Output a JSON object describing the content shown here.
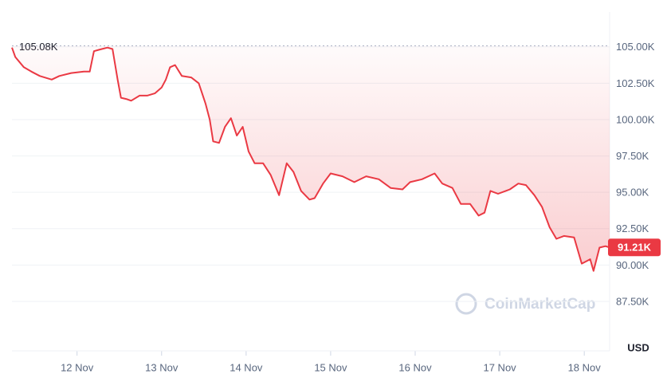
{
  "chart_data": {
    "type": "line",
    "x": [
      11.23,
      11.27,
      11.37,
      11.46,
      11.56,
      11.7,
      11.79,
      11.93,
      12.08,
      12.15,
      12.2,
      12.26,
      12.36,
      12.42,
      12.48,
      12.52,
      12.59,
      12.64,
      12.74,
      12.83,
      12.92,
      13.0,
      13.05,
      13.1,
      13.16,
      13.24,
      13.35,
      13.44,
      13.52,
      13.57,
      13.61,
      13.68,
      13.75,
      13.82,
      13.89,
      13.96,
      14.03,
      14.1,
      14.2,
      14.29,
      14.39,
      14.48,
      14.56,
      14.65,
      14.75,
      14.81,
      14.91,
      15.0,
      15.14,
      15.28,
      15.42,
      15.57,
      15.71,
      15.85,
      15.94,
      16.08,
      16.23,
      16.32,
      16.44,
      16.54,
      16.65,
      16.75,
      16.82,
      16.89,
      16.98,
      17.12,
      17.22,
      17.31,
      17.41,
      17.5,
      17.59,
      17.67,
      17.76,
      17.88,
      17.97,
      18.07,
      18.11,
      18.18,
      18.25,
      18.3
    ],
    "series": [
      {
        "color": "#ea3943",
        "values": [
          104.95,
          104.3,
          103.6,
          103.3,
          103.0,
          102.75,
          103.0,
          103.2,
          103.3,
          103.3,
          104.7,
          104.8,
          104.95,
          104.85,
          102.75,
          101.5,
          101.4,
          101.3,
          101.65,
          101.65,
          101.8,
          102.2,
          102.75,
          103.6,
          103.75,
          103.0,
          102.9,
          102.5,
          101.1,
          100.0,
          98.5,
          98.4,
          99.5,
          100.1,
          98.9,
          99.5,
          97.8,
          97.0,
          97.0,
          96.2,
          94.8,
          97.0,
          96.4,
          95.1,
          94.5,
          94.6,
          95.6,
          96.3,
          96.1,
          95.7,
          96.1,
          95.9,
          95.3,
          95.2,
          95.7,
          95.9,
          96.3,
          95.6,
          95.3,
          94.2,
          94.2,
          93.4,
          93.6,
          95.1,
          94.9,
          95.2,
          95.6,
          95.5,
          94.8,
          94.0,
          92.6,
          91.8,
          92.0,
          91.9,
          90.1,
          90.4,
          89.6,
          91.2,
          91.3,
          91.21
        ]
      }
    ],
    "xlim": [
      11.23,
      18.3
    ],
    "xticks": [
      {
        "value": 12,
        "label": "12 Nov"
      },
      {
        "value": 13,
        "label": "13 Nov"
      },
      {
        "value": 14,
        "label": "14 Nov"
      },
      {
        "value": 15,
        "label": "15 Nov"
      },
      {
        "value": 16,
        "label": "16 Nov"
      },
      {
        "value": 17,
        "label": "17 Nov"
      },
      {
        "value": 18,
        "label": "18 Nov"
      }
    ],
    "ylim": [
      84.1,
      107.4
    ],
    "yticks": [
      {
        "value": 87.5,
        "label": "87.50K"
      },
      {
        "value": 90,
        "label": "90.00K"
      },
      {
        "value": 92.5,
        "label": "92.50K"
      },
      {
        "value": 95,
        "label": "95.00K"
      },
      {
        "value": 97.5,
        "label": "97.50K"
      },
      {
        "value": 100,
        "label": "100.00K"
      },
      {
        "value": 102.5,
        "label": "102.50K"
      },
      {
        "value": 105,
        "label": "105.00K"
      }
    ],
    "y_axis_label": "USD",
    "reference_line": {
      "value": 105.08,
      "label": "105.08K"
    },
    "last_price": {
      "value": 91.21,
      "label": "91.21K"
    },
    "watermark": "CoinMarketCap",
    "grid": true
  }
}
